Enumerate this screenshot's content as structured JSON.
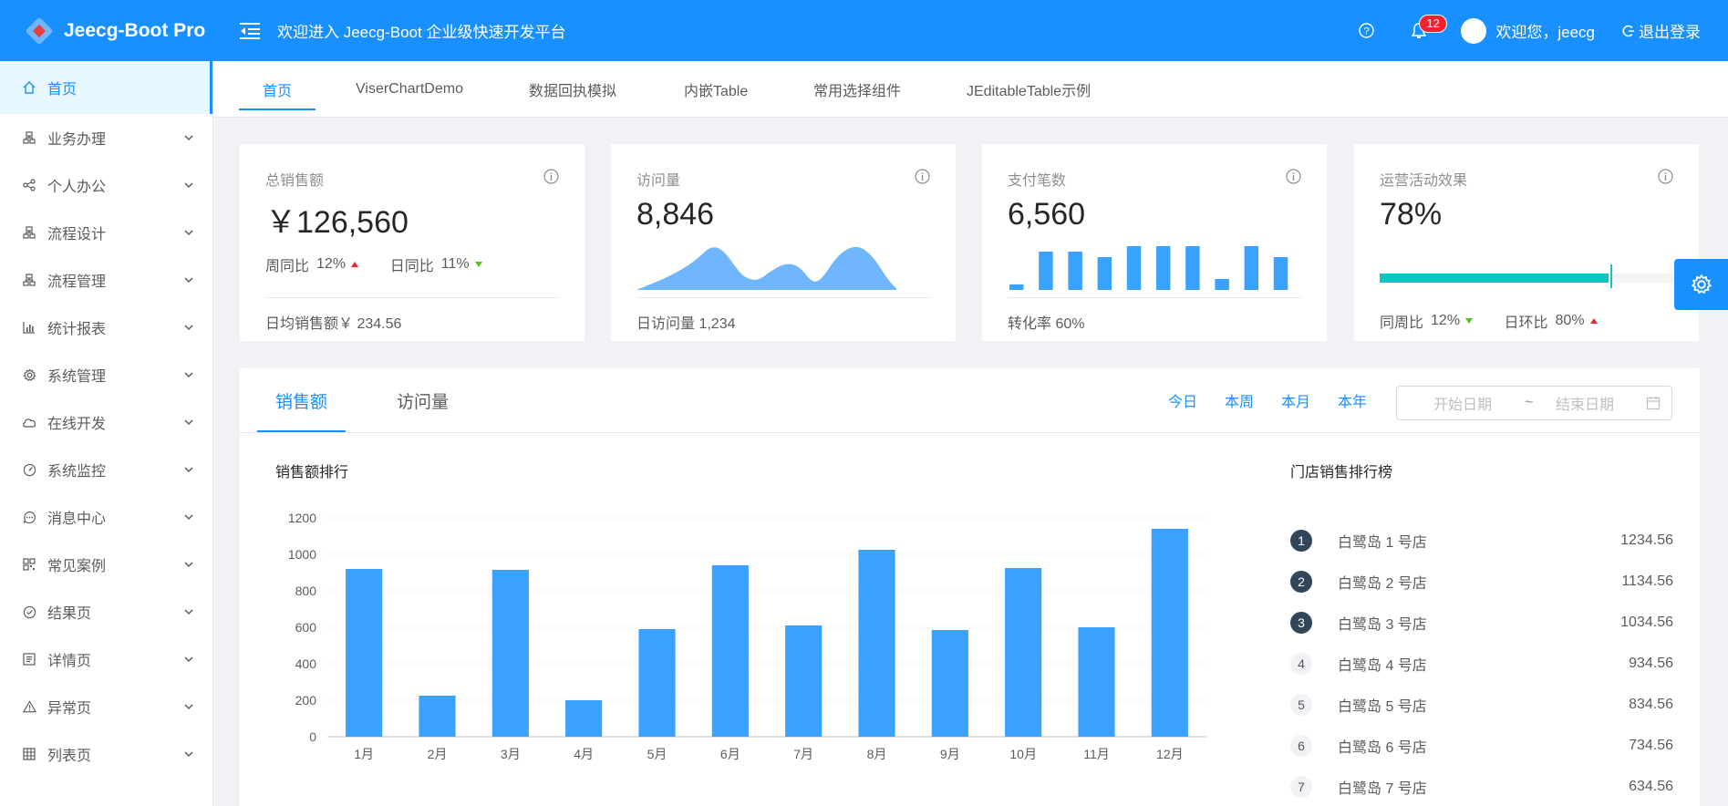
{
  "header": {
    "logo_text": "Jeecg-Boot Pro",
    "welcome_title": "欢迎进入 Jeecg-Boot 企业级快速开发平台",
    "notice_count": "12",
    "user_greeting": "欢迎您，jeecg",
    "logout_label": "退出登录"
  },
  "sidebar": {
    "items": [
      {
        "label": "首页",
        "icon": "home-icon"
      },
      {
        "label": "业务办理",
        "icon": "org-icon"
      },
      {
        "label": "个人办公",
        "icon": "share-icon"
      },
      {
        "label": "流程设计",
        "icon": "org-icon"
      },
      {
        "label": "流程管理",
        "icon": "org-icon"
      },
      {
        "label": "统计报表",
        "icon": "bar-chart-icon"
      },
      {
        "label": "系统管理",
        "icon": "gear-icon"
      },
      {
        "label": "在线开发",
        "icon": "cloud-icon"
      },
      {
        "label": "系统监控",
        "icon": "dashboard-icon"
      },
      {
        "label": "消息中心",
        "icon": "message-icon"
      },
      {
        "label": "常见案例",
        "icon": "qrcode-icon"
      },
      {
        "label": "结果页",
        "icon": "check-circle-icon"
      },
      {
        "label": "详情页",
        "icon": "profile-icon"
      },
      {
        "label": "异常页",
        "icon": "warning-icon"
      },
      {
        "label": "列表页",
        "icon": "table-icon"
      }
    ]
  },
  "tabs": [
    "首页",
    "ViserChartDemo",
    "数据回执模拟",
    "内嵌Table",
    "常用选择组件",
    "JEditableTable示例"
  ],
  "cards": [
    {
      "title": "总销售额",
      "value": "￥126,560",
      "week_label": "周同比",
      "week_value": "12%",
      "day_label": "日同比",
      "day_value": "11%",
      "footer": "日均销售额￥ 234.56"
    },
    {
      "title": "访问量",
      "value": "8,846",
      "footer": "日访问量 1,234"
    },
    {
      "title": "支付笔数",
      "value": "6,560",
      "footer": "转化率 60%",
      "bars": [
        1,
        7,
        7,
        6,
        8,
        8,
        8,
        2,
        8,
        6
      ]
    },
    {
      "title": "运营活动效果",
      "value": "78%",
      "progress": 0.78,
      "week_label": "同周比",
      "week_value": "12%",
      "day_label": "日环比",
      "day_value": "80%"
    }
  ],
  "panel": {
    "tabs": [
      "销售额",
      "访问量"
    ],
    "ranges": [
      "今日",
      "本周",
      "本月",
      "本年"
    ],
    "start_placeholder": "开始日期",
    "sep": "~",
    "end_placeholder": "结束日期",
    "chart_title": "销售额排行",
    "rank_title": "门店销售排行榜",
    "rank": [
      {
        "no": "1",
        "name": "白鹭岛 1 号店",
        "value": "1234.56"
      },
      {
        "no": "2",
        "name": "白鹭岛 2 号店",
        "value": "1134.56"
      },
      {
        "no": "3",
        "name": "白鹭岛 3 号店",
        "value": "1034.56"
      },
      {
        "no": "4",
        "name": "白鹭岛 4 号店",
        "value": "934.56"
      },
      {
        "no": "5",
        "name": "白鹭岛 5 号店",
        "value": "834.56"
      },
      {
        "no": "6",
        "name": "白鹭岛 6 号店",
        "value": "734.56"
      },
      {
        "no": "7",
        "name": "白鹭岛 7 号店",
        "value": "634.56"
      }
    ]
  },
  "colors": {
    "primary": "#1890ff",
    "bar": "#3ba1ff",
    "area": "#6fb6ff",
    "progress": "#13c2c2"
  },
  "chart_data": {
    "type": "bar",
    "categories": [
      "1月",
      "2月",
      "3月",
      "4月",
      "5月",
      "6月",
      "7月",
      "8月",
      "9月",
      "10月",
      "11月",
      "12月"
    ],
    "values": [
      920,
      225,
      915,
      200,
      590,
      940,
      610,
      1025,
      585,
      925,
      600,
      1140
    ],
    "ylim": [
      0,
      1200
    ],
    "yticks": [
      0,
      200,
      400,
      600,
      800,
      1000,
      1200
    ],
    "grid": true
  }
}
